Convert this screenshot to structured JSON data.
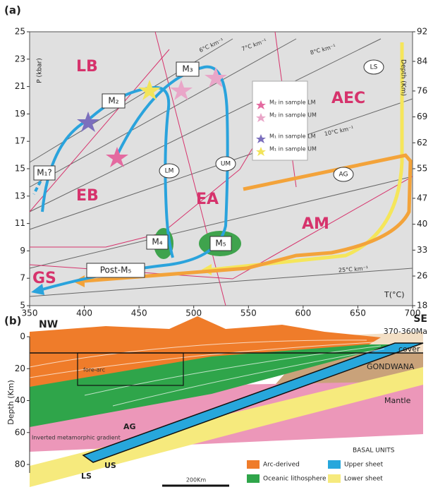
{
  "panel_a": {
    "label": "(a)",
    "y_label": "P (kbar)",
    "y2_label": "Depth (Km)",
    "x_label": "T(°C)",
    "xticks": [
      350,
      400,
      450,
      500,
      550,
      600,
      650,
      700
    ],
    "yticks": [
      5,
      7,
      9,
      11,
      13,
      15,
      17,
      19,
      21,
      23,
      25
    ],
    "y2ticks": [
      18,
      26,
      33,
      40,
      47,
      55,
      62,
      69,
      76,
      84,
      92
    ],
    "fields": [
      "LB",
      "EB",
      "EA",
      "AEC",
      "AM",
      "GS"
    ],
    "stages": [
      "M₁?",
      "M₂",
      "M₃",
      "M₄",
      "M₅",
      "Post-M₅"
    ],
    "ovals": [
      "LS",
      "UM",
      "LM",
      "AG"
    ],
    "geotherms": [
      "6°C km⁻¹",
      "7°C km⁻¹",
      "8°C km⁻¹",
      "10°C km⁻¹",
      "25°C km⁻¹"
    ],
    "legend": [
      "M₂ in sample LM",
      "M₂ in sample UM",
      "M₁ in sample LM",
      "M₁ in sample UM"
    ]
  },
  "panel_b": {
    "label": "(b)",
    "left_end": "NW",
    "right_end": "SE",
    "age": "370-360Ma",
    "units": [
      "cover",
      "GONDWANA",
      "Mantle",
      "fore-arc",
      "AG",
      "LS",
      "US"
    ],
    "annotation": "Inverted metamorphic gradient",
    "y_label": "Depth (Km)",
    "yticks": [
      0,
      20,
      40,
      60,
      80
    ],
    "scale": "200Km",
    "legend_title": "BASAL UNITS",
    "legend": [
      "Arc-derived",
      "Upper sheet",
      "Oceanic lithosphere",
      "Lower sheet"
    ]
  }
}
